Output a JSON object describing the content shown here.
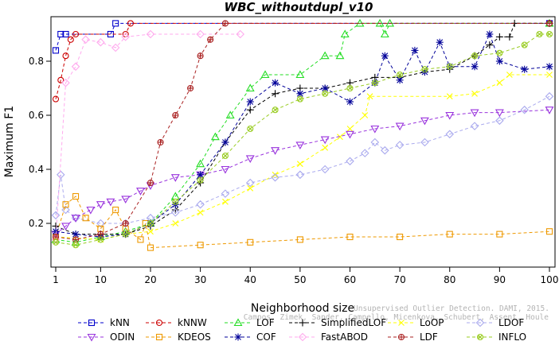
{
  "chart_data": {
    "type": "line",
    "title": "WBC_withoutdupl_v10",
    "xlabel": "Neighborhood size",
    "ylabel": "Maximum F1",
    "xlim": [
      1,
      100
    ],
    "ylim": [
      0.08,
      0.94
    ],
    "xticks": [
      1,
      10,
      20,
      30,
      40,
      50,
      60,
      70,
      80,
      90,
      100
    ],
    "yticks": [
      0.2,
      0.4,
      0.6,
      0.8
    ],
    "grid": false,
    "legend_position": "bottom",
    "watermark": {
      "line1": "Unsupervised Outlier Detection. DAMI, 2015.",
      "line2": "Campos, Zimek, Sander, Campello, Micenkova, Schubert, Assent, Houle"
    },
    "series": [
      {
        "name": "kNN",
        "color": "#0000cc",
        "marker": "square",
        "dash": "4,3",
        "points": [
          [
            1,
            0.84
          ],
          [
            2,
            0.9
          ],
          [
            3,
            0.9
          ],
          [
            12,
            0.9
          ],
          [
            13,
            0.94
          ],
          [
            100,
            0.94
          ]
        ]
      },
      {
        "name": "kNNW",
        "color": "#cc0000",
        "marker": "circle",
        "dash": "4,3",
        "points": [
          [
            1,
            0.66
          ],
          [
            2,
            0.73
          ],
          [
            3,
            0.82
          ],
          [
            4,
            0.88
          ],
          [
            5,
            0.9
          ],
          [
            15,
            0.9
          ],
          [
            16,
            0.94
          ],
          [
            100,
            0.94
          ]
        ]
      },
      {
        "name": "LOF",
        "color": "#22dd22",
        "marker": "triangle",
        "dash": "4,3",
        "points": [
          [
            1,
            0.14
          ],
          [
            5,
            0.13
          ],
          [
            10,
            0.15
          ],
          [
            15,
            0.17
          ],
          [
            20,
            0.2
          ],
          [
            25,
            0.3
          ],
          [
            30,
            0.42
          ],
          [
            33,
            0.52
          ],
          [
            36,
            0.6
          ],
          [
            40,
            0.7
          ],
          [
            43,
            0.75
          ],
          [
            50,
            0.75
          ],
          [
            55,
            0.82
          ],
          [
            58,
            0.82
          ],
          [
            59,
            0.9
          ],
          [
            62,
            0.94
          ],
          [
            66,
            0.94
          ],
          [
            67,
            0.9
          ],
          [
            68,
            0.94
          ],
          [
            100,
            0.94
          ]
        ]
      },
      {
        "name": "SimplifiedLOF",
        "color": "#000000",
        "marker": "plus",
        "dash": "4,3",
        "points": [
          [
            1,
            0.19
          ],
          [
            5,
            0.16
          ],
          [
            10,
            0.16
          ],
          [
            15,
            0.16
          ],
          [
            20,
            0.19
          ],
          [
            25,
            0.25
          ],
          [
            30,
            0.35
          ],
          [
            35,
            0.5
          ],
          [
            40,
            0.62
          ],
          [
            45,
            0.68
          ],
          [
            50,
            0.7
          ],
          [
            55,
            0.7
          ],
          [
            60,
            0.72
          ],
          [
            65,
            0.74
          ],
          [
            70,
            0.74
          ],
          [
            75,
            0.76
          ],
          [
            80,
            0.77
          ],
          [
            85,
            0.82
          ],
          [
            88,
            0.86
          ],
          [
            90,
            0.89
          ],
          [
            92,
            0.89
          ],
          [
            93,
            0.94
          ],
          [
            100,
            0.94
          ]
        ]
      },
      {
        "name": "LoOP",
        "color": "#ffff00",
        "marker": "x",
        "dash": "4,3",
        "points": [
          [
            1,
            0.15
          ],
          [
            10,
            0.14
          ],
          [
            15,
            0.16
          ],
          [
            20,
            0.17
          ],
          [
            25,
            0.2
          ],
          [
            30,
            0.24
          ],
          [
            35,
            0.28
          ],
          [
            40,
            0.33
          ],
          [
            45,
            0.38
          ],
          [
            50,
            0.42
          ],
          [
            55,
            0.48
          ],
          [
            58,
            0.52
          ],
          [
            60,
            0.55
          ],
          [
            63,
            0.6
          ],
          [
            64,
            0.67
          ],
          [
            80,
            0.67
          ],
          [
            85,
            0.68
          ],
          [
            90,
            0.72
          ],
          [
            92,
            0.75
          ],
          [
            100,
            0.75
          ]
        ]
      },
      {
        "name": "LDOF",
        "color": "#aaaaee",
        "marker": "diamond",
        "dash": "4,3",
        "points": [
          [
            1,
            0.23
          ],
          [
            2,
            0.38
          ],
          [
            3,
            0.25
          ],
          [
            5,
            0.22
          ],
          [
            10,
            0.2
          ],
          [
            15,
            0.2
          ],
          [
            20,
            0.22
          ],
          [
            25,
            0.24
          ],
          [
            30,
            0.27
          ],
          [
            35,
            0.31
          ],
          [
            40,
            0.35
          ],
          [
            45,
            0.37
          ],
          [
            50,
            0.38
          ],
          [
            55,
            0.4
          ],
          [
            60,
            0.43
          ],
          [
            63,
            0.46
          ],
          [
            65,
            0.5
          ],
          [
            67,
            0.47
          ],
          [
            70,
            0.49
          ],
          [
            75,
            0.5
          ],
          [
            80,
            0.53
          ],
          [
            85,
            0.56
          ],
          [
            90,
            0.58
          ],
          [
            95,
            0.62
          ],
          [
            100,
            0.67
          ]
        ]
      },
      {
        "name": "ODIN",
        "color": "#9933dd",
        "marker": "triangle-down",
        "dash": "4,3",
        "points": [
          [
            1,
            0.16
          ],
          [
            3,
            0.19
          ],
          [
            5,
            0.22
          ],
          [
            8,
            0.25
          ],
          [
            10,
            0.27
          ],
          [
            12,
            0.28
          ],
          [
            15,
            0.29
          ],
          [
            18,
            0.32
          ],
          [
            20,
            0.34
          ],
          [
            25,
            0.37
          ],
          [
            30,
            0.38
          ],
          [
            35,
            0.4
          ],
          [
            40,
            0.44
          ],
          [
            45,
            0.47
          ],
          [
            50,
            0.49
          ],
          [
            55,
            0.51
          ],
          [
            60,
            0.53
          ],
          [
            65,
            0.55
          ],
          [
            70,
            0.56
          ],
          [
            75,
            0.58
          ],
          [
            80,
            0.6
          ],
          [
            85,
            0.61
          ],
          [
            90,
            0.61
          ],
          [
            100,
            0.62
          ]
        ]
      },
      {
        "name": "KDEOS",
        "color": "#ee9900",
        "marker": "square",
        "dash": "4,3",
        "points": [
          [
            1,
            0.15
          ],
          [
            3,
            0.27
          ],
          [
            5,
            0.3
          ],
          [
            7,
            0.22
          ],
          [
            10,
            0.18
          ],
          [
            13,
            0.25
          ],
          [
            15,
            0.18
          ],
          [
            18,
            0.14
          ],
          [
            19,
            0.2
          ],
          [
            20,
            0.11
          ],
          [
            30,
            0.12
          ],
          [
            40,
            0.13
          ],
          [
            50,
            0.14
          ],
          [
            60,
            0.15
          ],
          [
            70,
            0.15
          ],
          [
            80,
            0.16
          ],
          [
            90,
            0.16
          ],
          [
            100,
            0.17
          ]
        ]
      },
      {
        "name": "COF",
        "color": "#000099",
        "marker": "asterisk",
        "dash": "4,3",
        "points": [
          [
            1,
            0.17
          ],
          [
            5,
            0.16
          ],
          [
            10,
            0.15
          ],
          [
            15,
            0.16
          ],
          [
            20,
            0.2
          ],
          [
            25,
            0.27
          ],
          [
            30,
            0.38
          ],
          [
            35,
            0.5
          ],
          [
            40,
            0.65
          ],
          [
            45,
            0.72
          ],
          [
            50,
            0.68
          ],
          [
            55,
            0.7
          ],
          [
            60,
            0.65
          ],
          [
            65,
            0.72
          ],
          [
            67,
            0.82
          ],
          [
            70,
            0.73
          ],
          [
            73,
            0.84
          ],
          [
            75,
            0.76
          ],
          [
            78,
            0.87
          ],
          [
            80,
            0.78
          ],
          [
            85,
            0.78
          ],
          [
            88,
            0.9
          ],
          [
            90,
            0.8
          ],
          [
            95,
            0.77
          ],
          [
            100,
            0.78
          ]
        ]
      },
      {
        "name": "FastABOD",
        "color": "#ffaaee",
        "marker": "diamond",
        "dash": "4,3",
        "points": [
          [
            1,
            0.14
          ],
          [
            3,
            0.72
          ],
          [
            5,
            0.78
          ],
          [
            7,
            0.88
          ],
          [
            10,
            0.87
          ],
          [
            13,
            0.85
          ],
          [
            15,
            0.89
          ],
          [
            20,
            0.9
          ],
          [
            30,
            0.9
          ],
          [
            38,
            0.9
          ]
        ]
      },
      {
        "name": "LDF",
        "color": "#aa2222",
        "marker": "circle-plus",
        "dash": "4,3",
        "points": [
          [
            1,
            0.15
          ],
          [
            5,
            0.14
          ],
          [
            10,
            0.16
          ],
          [
            15,
            0.2
          ],
          [
            20,
            0.35
          ],
          [
            22,
            0.5
          ],
          [
            25,
            0.6
          ],
          [
            28,
            0.7
          ],
          [
            30,
            0.82
          ],
          [
            32,
            0.88
          ],
          [
            35,
            0.94
          ],
          [
            100,
            0.94
          ]
        ]
      },
      {
        "name": "INFLO",
        "color": "#99cc22",
        "marker": "circle-x",
        "dash": "4,3",
        "points": [
          [
            1,
            0.13
          ],
          [
            5,
            0.12
          ],
          [
            10,
            0.14
          ],
          [
            15,
            0.16
          ],
          [
            20,
            0.2
          ],
          [
            25,
            0.28
          ],
          [
            30,
            0.36
          ],
          [
            35,
            0.45
          ],
          [
            40,
            0.55
          ],
          [
            45,
            0.62
          ],
          [
            50,
            0.66
          ],
          [
            55,
            0.68
          ],
          [
            60,
            0.7
          ],
          [
            65,
            0.72
          ],
          [
            70,
            0.75
          ],
          [
            75,
            0.77
          ],
          [
            80,
            0.78
          ],
          [
            85,
            0.82
          ],
          [
            90,
            0.83
          ],
          [
            95,
            0.86
          ],
          [
            98,
            0.9
          ],
          [
            100,
            0.9
          ]
        ]
      }
    ]
  }
}
